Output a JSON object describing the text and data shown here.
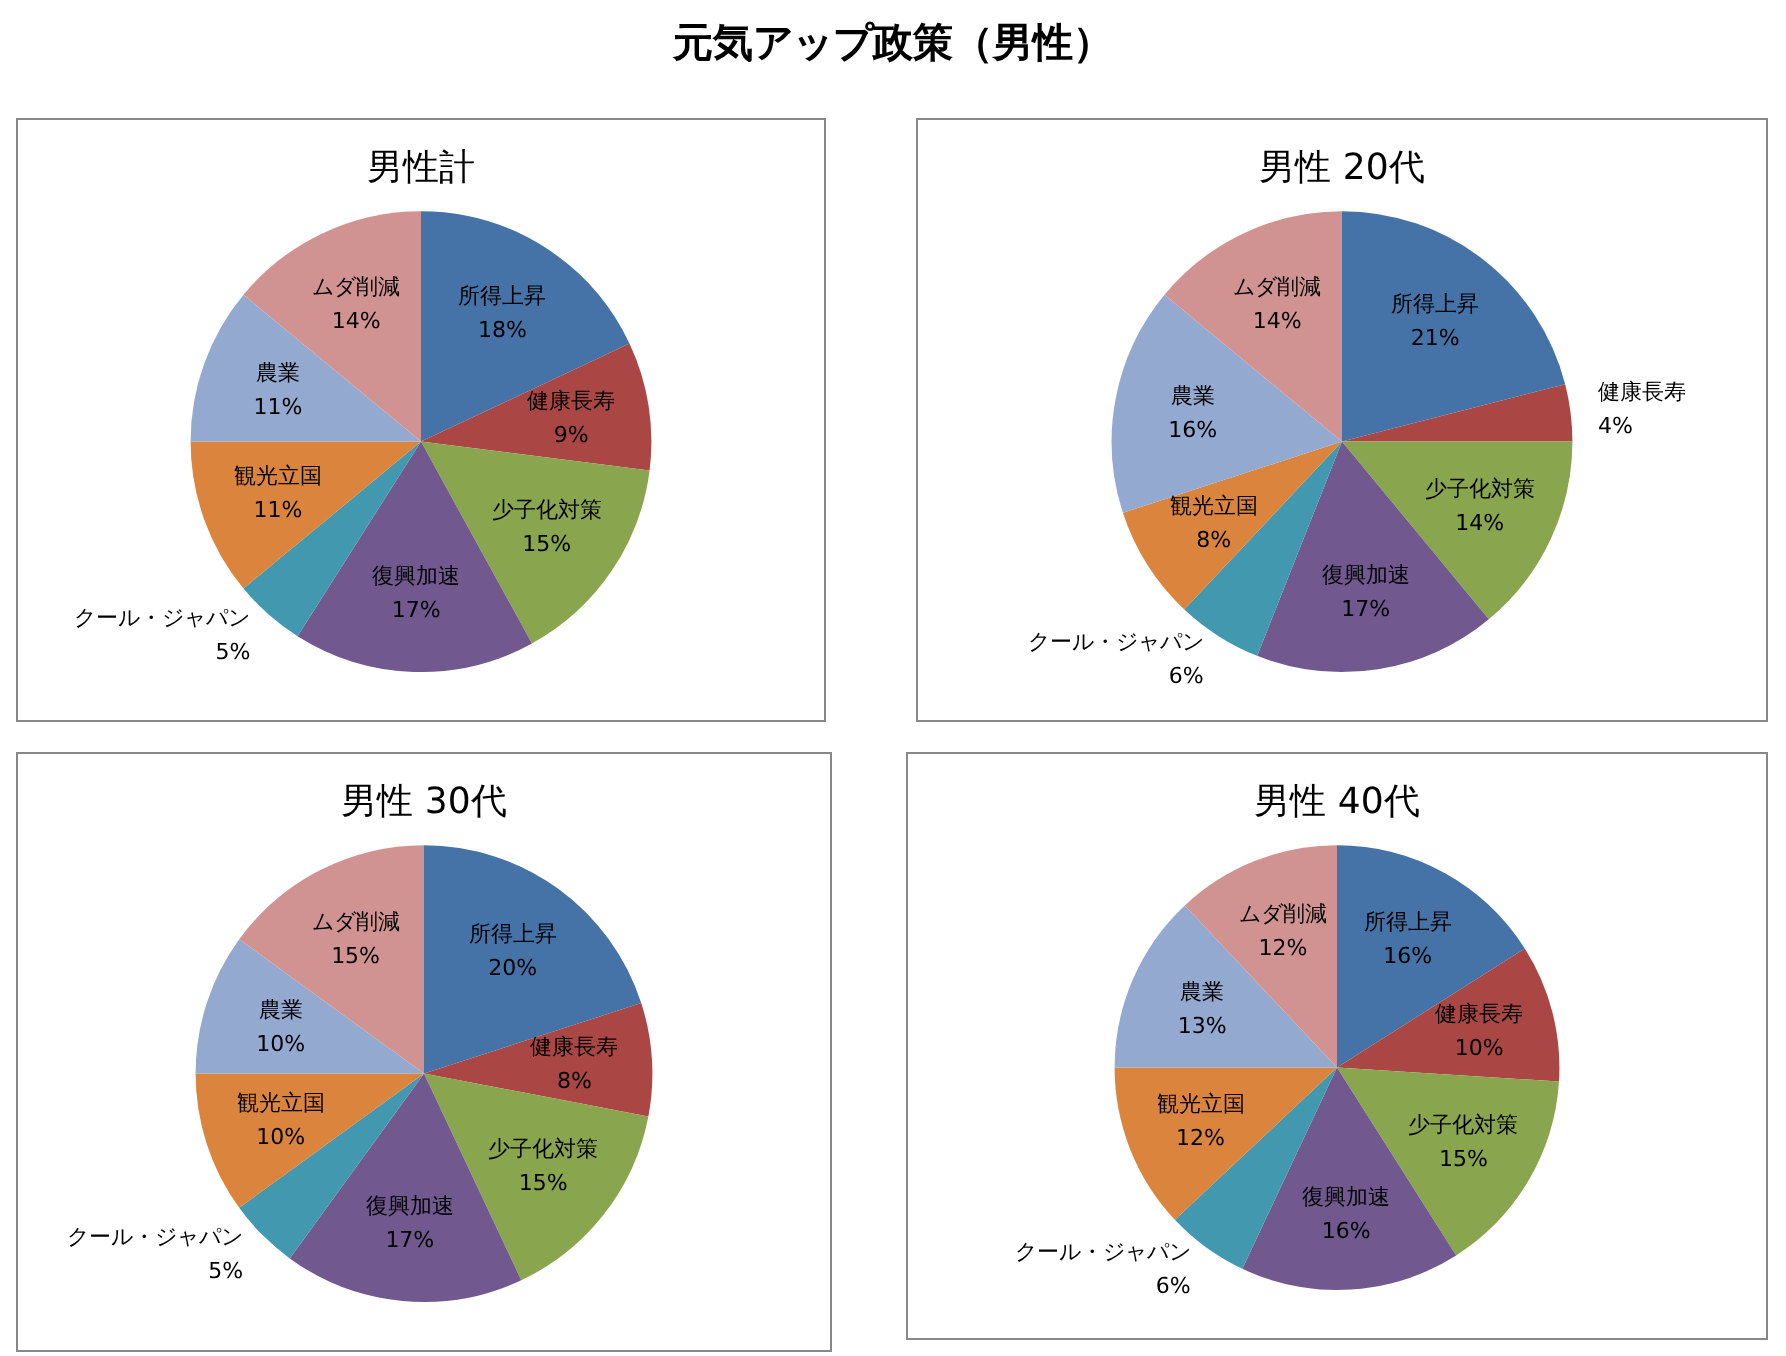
{
  "chart_data": [
    {
      "type": "pie",
      "title": "男性計",
      "annotations": [
        "元気アップ政策（男性）"
      ],
      "categories": [
        "所得上昇",
        "健康長寿",
        "少子化対策",
        "復興加速",
        "クール・ジャパン",
        "観光立国",
        "農業",
        "ムダ削減"
      ],
      "values": [
        18,
        9,
        15,
        17,
        5,
        11,
        11,
        14
      ],
      "value_labels": [
        "18%",
        "9%",
        "15%",
        "17%",
        "5%",
        "11%",
        "11%",
        "14%"
      ],
      "colors": [
        "#4572a7",
        "#aa4643",
        "#89a54e",
        "#71588f",
        "#4198af",
        "#db843d",
        "#93a9cf",
        "#d19392"
      ]
    },
    {
      "type": "pie",
      "title": "男性 20代",
      "categories": [
        "所得上昇",
        "健康長寿",
        "少子化対策",
        "復興加速",
        "クール・ジャパン",
        "観光立国",
        "農業",
        "ムダ削減"
      ],
      "values": [
        21,
        4,
        14,
        17,
        6,
        8,
        16,
        14
      ],
      "value_labels": [
        "21%",
        "4%",
        "14%",
        "17%",
        "6%",
        "8%",
        "16%",
        "14%"
      ],
      "colors": [
        "#4572a7",
        "#aa4643",
        "#89a54e",
        "#71588f",
        "#4198af",
        "#db843d",
        "#93a9cf",
        "#d19392"
      ]
    },
    {
      "type": "pie",
      "title": "男性 30代",
      "categories": [
        "所得上昇",
        "健康長寿",
        "少子化対策",
        "復興加速",
        "クール・ジャパン",
        "観光立国",
        "農業",
        "ムダ削減"
      ],
      "values": [
        20,
        8,
        15,
        17,
        5,
        10,
        10,
        15
      ],
      "value_labels": [
        "20%",
        "8%",
        "15%",
        "17%",
        "5%",
        "10%",
        "10%",
        "15%"
      ],
      "colors": [
        "#4572a7",
        "#aa4643",
        "#89a54e",
        "#71588f",
        "#4198af",
        "#db843d",
        "#93a9cf",
        "#d19392"
      ]
    },
    {
      "type": "pie",
      "title": "男性 40代",
      "categories": [
        "所得上昇",
        "健康長寿",
        "少子化対策",
        "復興加速",
        "クール・ジャパン",
        "観光立国",
        "農業",
        "ムダ削減"
      ],
      "values": [
        16,
        10,
        15,
        16,
        6,
        12,
        13,
        12
      ],
      "value_labels": [
        "16%",
        "10%",
        "15%",
        "16%",
        "6%",
        "12%",
        "13%",
        "12%"
      ],
      "colors": [
        "#4572a7",
        "#aa4643",
        "#89a54e",
        "#71588f",
        "#4198af",
        "#db843d",
        "#93a9cf",
        "#d19392"
      ]
    }
  ]
}
